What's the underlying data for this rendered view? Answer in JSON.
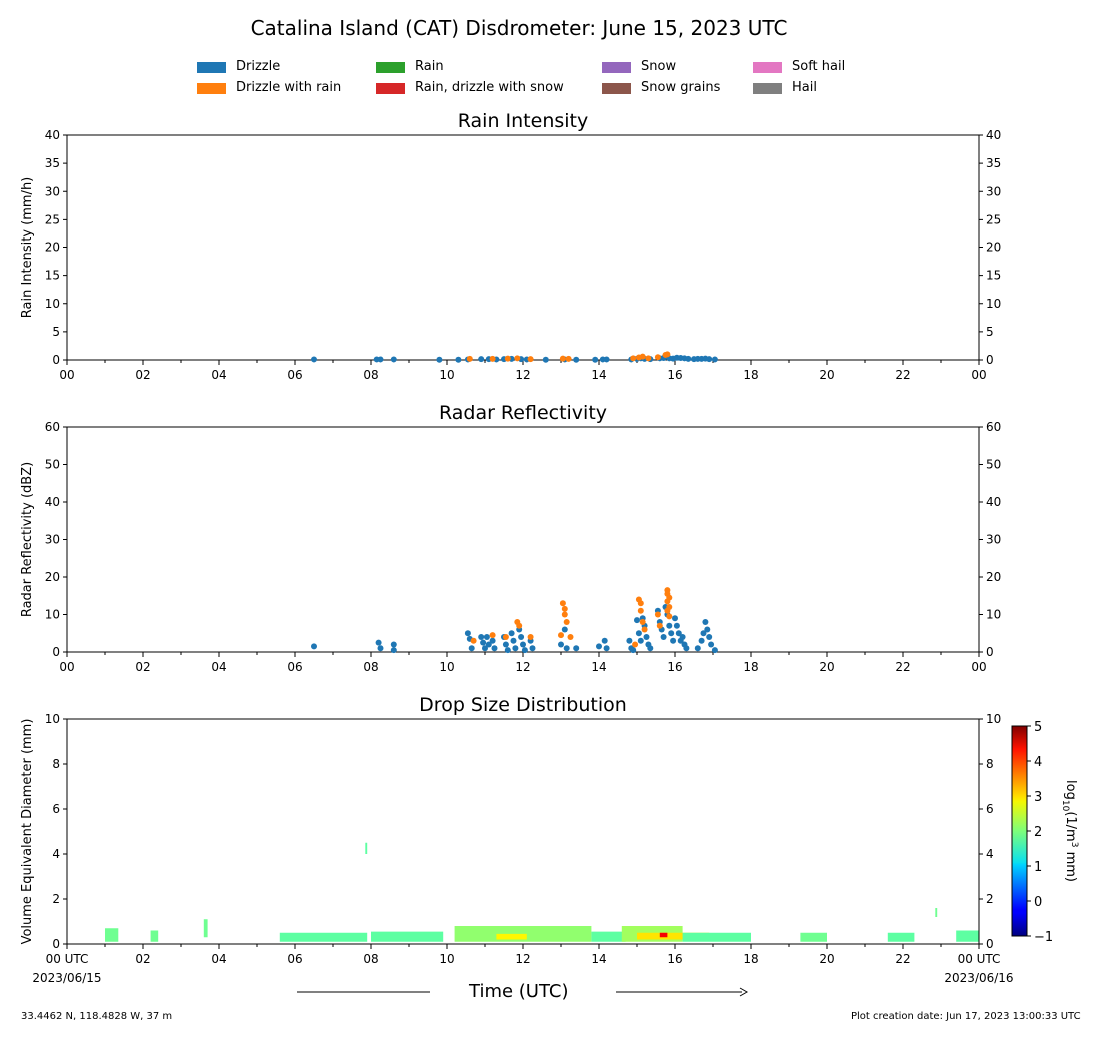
{
  "title": "Catalina Island (CAT) Disdrometer: June 15, 2023 UTC",
  "legend": [
    {
      "label": "Drizzle",
      "color": "#1f77b4"
    },
    {
      "label": "Drizzle with rain",
      "color": "#ff7f0e"
    },
    {
      "label": "Rain",
      "color": "#2ca02c"
    },
    {
      "label": "Rain, drizzle with snow",
      "color": "#d62728"
    },
    {
      "label": "Snow",
      "color": "#9467bd"
    },
    {
      "label": "Snow grains",
      "color": "#8c564b"
    },
    {
      "label": "Soft hail",
      "color": "#e377c2"
    },
    {
      "label": "Hail",
      "color": "#7f7f7f"
    }
  ],
  "footer": {
    "location": "33.4462 N, 118.4828 W, 37 m",
    "creation": "Plot creation date: Jun 17, 2023 13:00:33 UTC",
    "xlabel": "Time (UTC)"
  },
  "chart_data": [
    {
      "type": "scatter",
      "title": "Rain Intensity",
      "ylabel": "Rain Intensity (mm/h)",
      "xlim": [
        0,
        24
      ],
      "ylim": [
        0,
        40
      ],
      "xticks": [
        "00",
        "02",
        "04",
        "06",
        "08",
        "10",
        "12",
        "14",
        "16",
        "18",
        "20",
        "22",
        "00"
      ],
      "yticks": [
        0,
        5,
        10,
        15,
        20,
        25,
        30,
        35,
        40
      ],
      "grid": false,
      "series": [
        {
          "name": "Drizzle",
          "color": "#1f77b4",
          "points": [
            [
              6.5,
              0.1
            ],
            [
              8.15,
              0.1
            ],
            [
              8.25,
              0.1
            ],
            [
              8.6,
              0.1
            ],
            [
              9.8,
              0.05
            ],
            [
              10.3,
              0.05
            ],
            [
              10.55,
              0.1
            ],
            [
              10.9,
              0.15
            ],
            [
              11.1,
              0.15
            ],
            [
              11.3,
              0.1
            ],
            [
              11.5,
              0.15
            ],
            [
              11.7,
              0.2
            ],
            [
              11.95,
              0.15
            ],
            [
              12.1,
              0.1
            ],
            [
              12.6,
              0.05
            ],
            [
              13.1,
              0.1
            ],
            [
              13.4,
              0.05
            ],
            [
              13.9,
              0.05
            ],
            [
              14.1,
              0.1
            ],
            [
              14.2,
              0.1
            ],
            [
              14.85,
              0.1
            ],
            [
              15.0,
              0.2
            ],
            [
              15.1,
              0.3
            ],
            [
              15.2,
              0.2
            ],
            [
              15.35,
              0.15
            ],
            [
              15.6,
              0.3
            ],
            [
              15.7,
              0.35
            ],
            [
              15.85,
              0.3
            ],
            [
              15.95,
              0.25
            ],
            [
              16.05,
              0.4
            ],
            [
              16.15,
              0.35
            ],
            [
              16.25,
              0.3
            ],
            [
              16.35,
              0.2
            ],
            [
              16.5,
              0.15
            ],
            [
              16.6,
              0.2
            ],
            [
              16.7,
              0.2
            ],
            [
              16.8,
              0.25
            ],
            [
              16.9,
              0.15
            ],
            [
              17.05,
              0.1
            ]
          ]
        },
        {
          "name": "Drizzle with rain",
          "color": "#ff7f0e",
          "points": [
            [
              10.6,
              0.2
            ],
            [
              11.2,
              0.2
            ],
            [
              11.6,
              0.25
            ],
            [
              11.85,
              0.3
            ],
            [
              12.2,
              0.15
            ],
            [
              13.05,
              0.25
            ],
            [
              13.2,
              0.2
            ],
            [
              14.9,
              0.3
            ],
            [
              15.05,
              0.45
            ],
            [
              15.15,
              0.6
            ],
            [
              15.3,
              0.3
            ],
            [
              15.55,
              0.5
            ],
            [
              15.75,
              0.9
            ],
            [
              15.8,
              1.0
            ]
          ]
        }
      ]
    },
    {
      "type": "scatter",
      "title": "Radar Reflectivity",
      "ylabel": "Radar Reflectivity (dBZ)",
      "xlim": [
        0,
        24
      ],
      "ylim": [
        0,
        60
      ],
      "xticks": [
        "00",
        "02",
        "04",
        "06",
        "08",
        "10",
        "12",
        "14",
        "16",
        "18",
        "20",
        "22",
        "00"
      ],
      "yticks": [
        0,
        10,
        20,
        30,
        40,
        50,
        60
      ],
      "grid": false,
      "series": [
        {
          "name": "Drizzle",
          "color": "#1f77b4",
          "points": [
            [
              6.5,
              1.5
            ],
            [
              8.2,
              2.5
            ],
            [
              8.25,
              1
            ],
            [
              8.6,
              2
            ],
            [
              8.6,
              0.5
            ],
            [
              10.55,
              5
            ],
            [
              10.6,
              3.5
            ],
            [
              10.65,
              1
            ],
            [
              10.9,
              4
            ],
            [
              10.95,
              2.5
            ],
            [
              11.0,
              1
            ],
            [
              11.05,
              4
            ],
            [
              11.1,
              2
            ],
            [
              11.2,
              3
            ],
            [
              11.25,
              1
            ],
            [
              11.5,
              4
            ],
            [
              11.55,
              2
            ],
            [
              11.6,
              0.5
            ],
            [
              11.7,
              5
            ],
            [
              11.75,
              3
            ],
            [
              11.8,
              1
            ],
            [
              11.9,
              6
            ],
            [
              11.95,
              4
            ],
            [
              12.0,
              2
            ],
            [
              12.05,
              0.5
            ],
            [
              12.2,
              3
            ],
            [
              12.25,
              1
            ],
            [
              13.0,
              2
            ],
            [
              13.1,
              6
            ],
            [
              13.15,
              1
            ],
            [
              13.4,
              1
            ],
            [
              14.0,
              1.5
            ],
            [
              14.15,
              3
            ],
            [
              14.2,
              1
            ],
            [
              14.8,
              3
            ],
            [
              14.85,
              1
            ],
            [
              14.9,
              0.5
            ],
            [
              15.0,
              8.5
            ],
            [
              15.05,
              5
            ],
            [
              15.1,
              3
            ],
            [
              15.15,
              9
            ],
            [
              15.2,
              7
            ],
            [
              15.25,
              4
            ],
            [
              15.3,
              2
            ],
            [
              15.35,
              1
            ],
            [
              15.55,
              11
            ],
            [
              15.6,
              8
            ],
            [
              15.65,
              6
            ],
            [
              15.7,
              4
            ],
            [
              15.75,
              12
            ],
            [
              15.8,
              10
            ],
            [
              15.85,
              7
            ],
            [
              15.9,
              5
            ],
            [
              15.95,
              3
            ],
            [
              16.0,
              9
            ],
            [
              16.05,
              7
            ],
            [
              16.1,
              5
            ],
            [
              16.15,
              3
            ],
            [
              16.2,
              4
            ],
            [
              16.25,
              2
            ],
            [
              16.3,
              1
            ],
            [
              16.6,
              1
            ],
            [
              16.7,
              3
            ],
            [
              16.75,
              5
            ],
            [
              16.8,
              8
            ],
            [
              16.85,
              6
            ],
            [
              16.9,
              4
            ],
            [
              16.95,
              2
            ],
            [
              17.05,
              0.5
            ]
          ]
        },
        {
          "name": "Drizzle with rain",
          "color": "#ff7f0e",
          "points": [
            [
              10.7,
              3
            ],
            [
              11.2,
              4.5
            ],
            [
              11.55,
              4
            ],
            [
              11.85,
              8
            ],
            [
              11.9,
              7
            ],
            [
              12.2,
              4
            ],
            [
              13.0,
              4.5
            ],
            [
              13.05,
              13
            ],
            [
              13.1,
              11.5
            ],
            [
              13.1,
              10
            ],
            [
              13.15,
              8
            ],
            [
              13.25,
              4
            ],
            [
              14.95,
              2
            ],
            [
              15.05,
              14
            ],
            [
              15.1,
              13
            ],
            [
              15.1,
              11
            ],
            [
              15.15,
              8
            ],
            [
              15.2,
              6
            ],
            [
              15.55,
              10
            ],
            [
              15.6,
              7
            ],
            [
              15.8,
              16.5
            ],
            [
              15.8,
              15.5
            ],
            [
              15.85,
              14.5
            ],
            [
              15.8,
              13.5
            ],
            [
              15.85,
              12
            ],
            [
              15.8,
              11
            ],
            [
              15.85,
              9.5
            ]
          ]
        }
      ]
    },
    {
      "type": "heatmap",
      "title": "Drop Size Distribution",
      "ylabel": "Volume Equivalent Diameter (mm)",
      "xlim": [
        0,
        24
      ],
      "ylim": [
        0,
        10
      ],
      "xticks": [
        "00 UTC",
        "02",
        "04",
        "06",
        "08",
        "10",
        "12",
        "14",
        "16",
        "18",
        "20",
        "22",
        "00 UTC"
      ],
      "xtick_dates": {
        "first": "2023/06/15",
        "last": "2023/06/16"
      },
      "yticks": [
        0,
        2,
        4,
        6,
        8,
        10
      ],
      "colorbar": {
        "label": "log10(1/m³ mm)",
        "label_base": "log",
        "label_sub": "10",
        "label_rest": "(1/m",
        "label_sup": "3",
        "label_end": " mm)",
        "min": -1,
        "max": 5,
        "ticks": [
          -1,
          0,
          1,
          2,
          3,
          4,
          5
        ],
        "tick_labels": [
          "−1",
          "0",
          "1",
          "2",
          "3",
          "4",
          "5"
        ],
        "colormap": "jet"
      },
      "bands": [
        {
          "x0": 1.0,
          "x1": 1.35,
          "y0": 0.1,
          "y1": 0.7,
          "value": 1.9
        },
        {
          "x0": 2.2,
          "x1": 2.4,
          "y0": 0.1,
          "y1": 0.6,
          "value": 1.9
        },
        {
          "x0": 3.6,
          "x1": 3.7,
          "y0": 0.3,
          "y1": 1.1,
          "value": 1.9
        },
        {
          "x0": 5.6,
          "x1": 7.9,
          "y0": 0.1,
          "y1": 0.5,
          "value": 1.8
        },
        {
          "x0": 7.85,
          "x1": 7.9,
          "y0": 4.0,
          "y1": 4.5,
          "value": 1.8
        },
        {
          "x0": 8.0,
          "x1": 9.9,
          "y0": 0.1,
          "y1": 0.55,
          "value": 1.8
        },
        {
          "x0": 10.2,
          "x1": 13.8,
          "y0": 0.1,
          "y1": 0.8,
          "value": 2.1
        },
        {
          "x0": 11.3,
          "x1": 12.1,
          "y0": 0.2,
          "y1": 0.45,
          "value": 2.8
        },
        {
          "x0": 13.8,
          "x1": 14.7,
          "y0": 0.1,
          "y1": 0.55,
          "value": 1.8
        },
        {
          "x0": 14.6,
          "x1": 16.2,
          "y0": 0.1,
          "y1": 0.8,
          "value": 2.2
        },
        {
          "x0": 15.0,
          "x1": 16.9,
          "y0": 0.2,
          "y1": 0.5,
          "value": 2.9
        },
        {
          "x0": 15.6,
          "x1": 15.8,
          "y0": 0.3,
          "y1": 0.5,
          "value": 4.3
        },
        {
          "x0": 16.2,
          "x1": 18.0,
          "y0": 0.1,
          "y1": 0.5,
          "value": 1.8
        },
        {
          "x0": 19.3,
          "x1": 20.0,
          "y0": 0.1,
          "y1": 0.5,
          "value": 1.9
        },
        {
          "x0": 21.6,
          "x1": 22.3,
          "y0": 0.1,
          "y1": 0.5,
          "value": 1.8
        },
        {
          "x0": 22.85,
          "x1": 22.9,
          "y0": 1.2,
          "y1": 1.6,
          "value": 1.9
        },
        {
          "x0": 23.4,
          "x1": 24.0,
          "y0": 0.1,
          "y1": 0.6,
          "value": 1.8
        }
      ]
    }
  ]
}
